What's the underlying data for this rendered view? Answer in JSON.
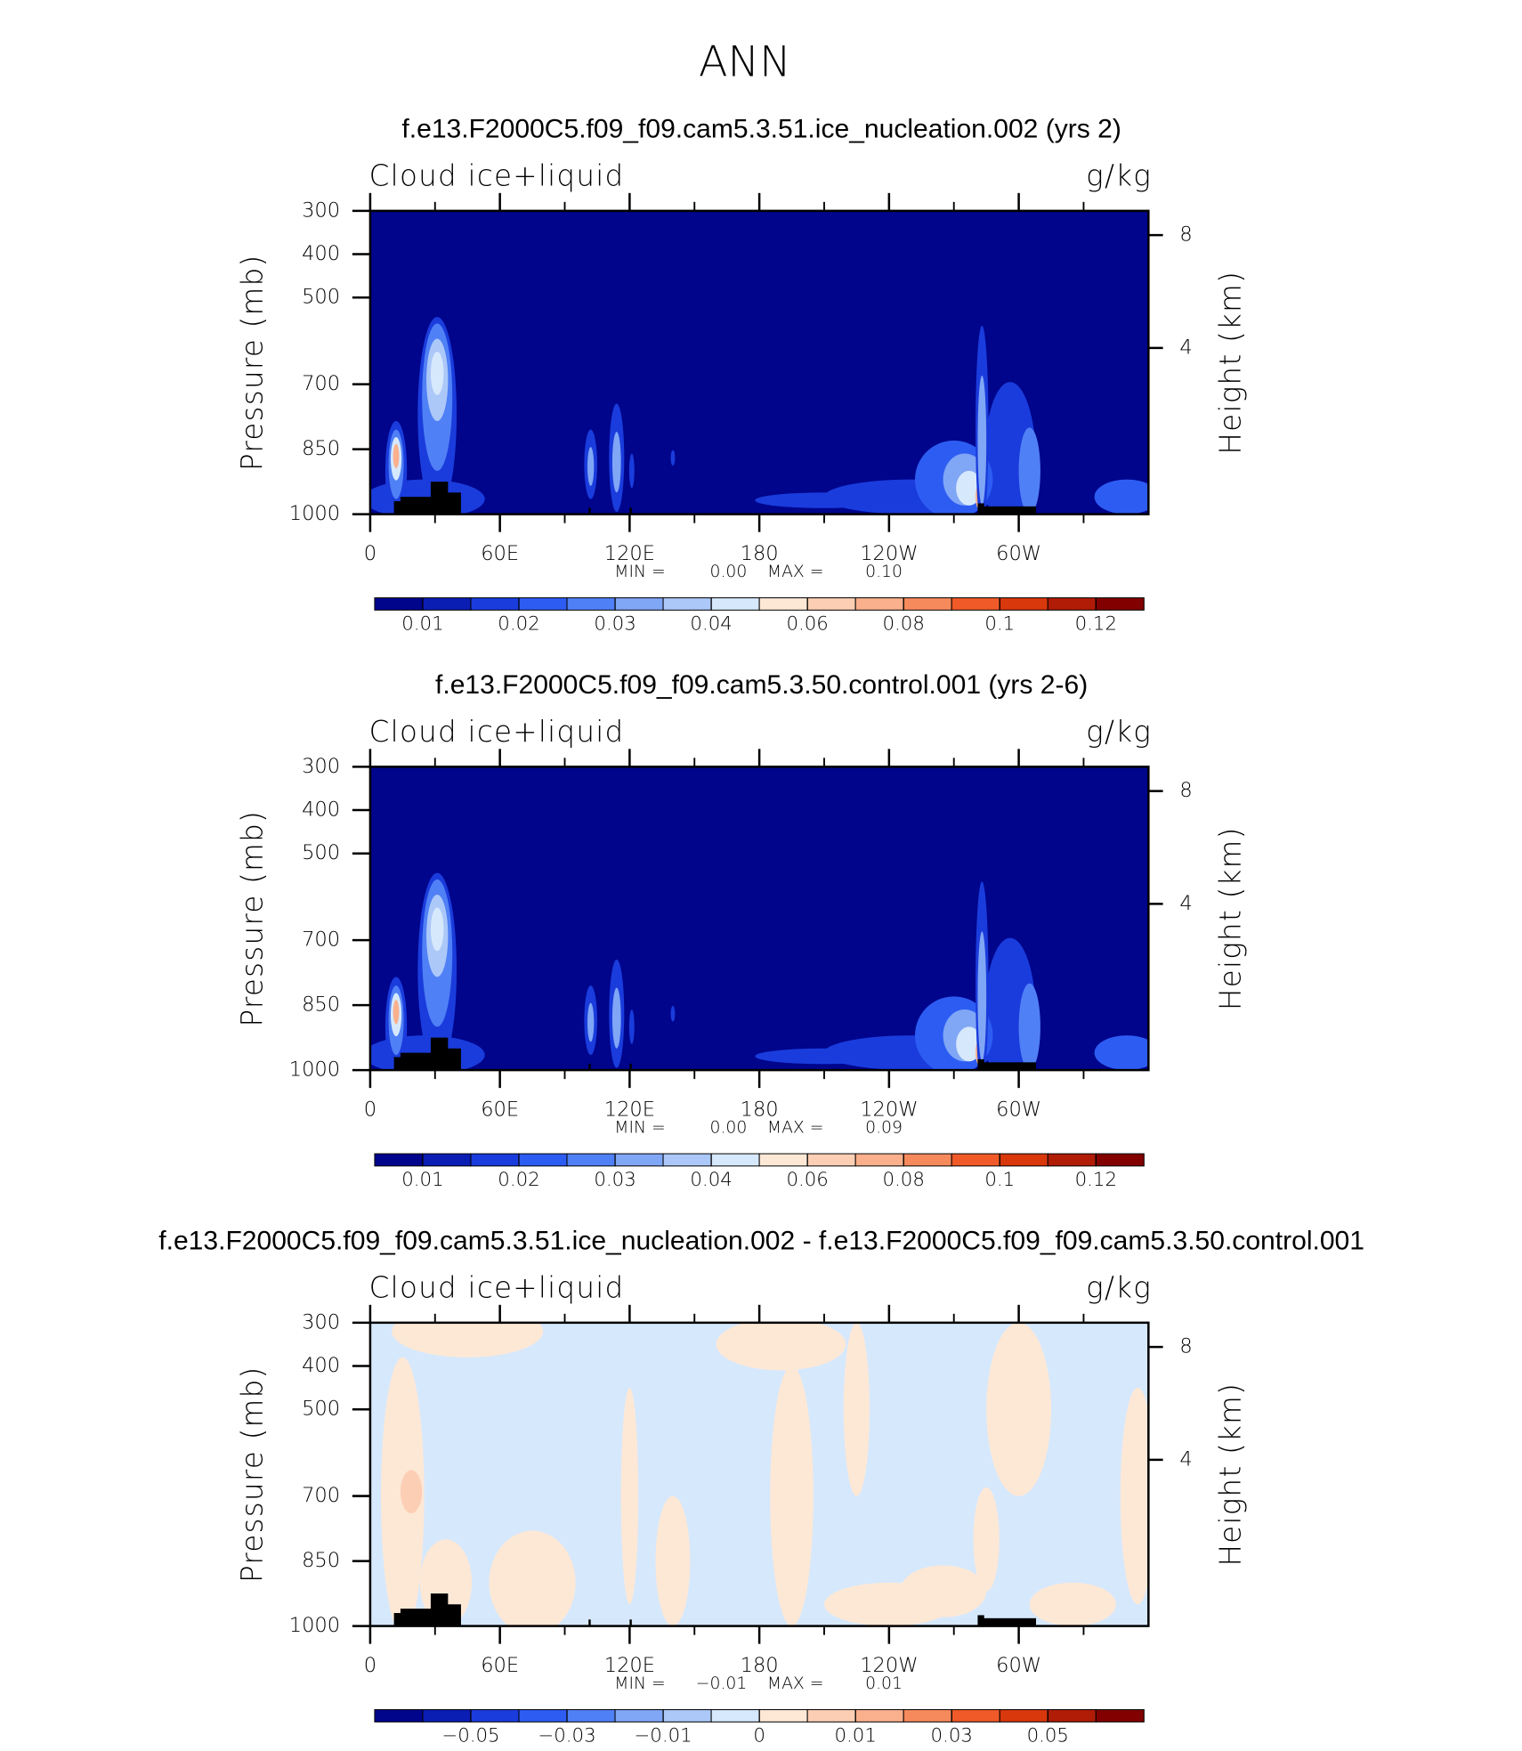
{
  "title": "ANN",
  "chart_data": [
    {
      "type": "contour",
      "title": "f.e13.F2000C5.f09_f09.cam5.3.51.ice_nucleation.002 (yrs 2)",
      "left_string": "Cloud ice+liquid",
      "right_string": "g/kg",
      "ylabel": "Pressure (mb)",
      "y2label": "Height (km)",
      "xlim": [
        0,
        360
      ],
      "xticks": [
        0,
        {
          "value": 60,
          "label": "60E"
        },
        {
          "value": 120,
          "label": "120E"
        },
        180,
        {
          "value": 240,
          "label": "120W"
        },
        {
          "value": 300,
          "label": "60W"
        }
      ],
      "xminorticks": [
        30,
        90,
        150,
        210,
        270,
        330
      ],
      "ylim": [
        1000,
        300
      ],
      "yticks": [
        300,
        400,
        500,
        700,
        850,
        1000
      ],
      "y2ticks": [
        4,
        8
      ],
      "y2scale": "standard-atmosphere",
      "min_label": "MIN =",
      "max_label": "MAX =",
      "min": {
        "value": 0,
        "label": "0.00"
      },
      "max": {
        "value": 0.1,
        "label": "0.10"
      },
      "colorbar": {
        "colors": [
          "#00058c",
          "#0a1eb4",
          "#1a3cdc",
          "#2d5cf2",
          "#5080f6",
          "#80a6f6",
          "#acc8f8",
          "#d6e8fc",
          "#fde8d6",
          "#fccfb4",
          "#fab08c",
          "#f78a5c",
          "#f05a28",
          "#d8380c",
          "#b01c06",
          "#820000"
        ],
        "levels": [
          0.01,
          null,
          0.02,
          null,
          0.03,
          null,
          0.04,
          null,
          0.06,
          null,
          0.08,
          null,
          0.1,
          null,
          0.12
        ]
      }
    },
    {
      "type": "contour",
      "title": "f.e13.F2000C5.f09_f09.cam5.3.50.control.001 (yrs 2-6)",
      "left_string": "Cloud ice+liquid",
      "right_string": "g/kg",
      "ylabel": "Pressure (mb)",
      "y2label": "Height (km)",
      "xlim": [
        0,
        360
      ],
      "xticks": [
        0,
        {
          "value": 60,
          "label": "60E"
        },
        {
          "value": 120,
          "label": "120E"
        },
        180,
        {
          "value": 240,
          "label": "120W"
        },
        {
          "value": 300,
          "label": "60W"
        }
      ],
      "xminorticks": [
        30,
        90,
        150,
        210,
        270,
        330
      ],
      "ylim": [
        1000,
        300
      ],
      "yticks": [
        300,
        400,
        500,
        700,
        850,
        1000
      ],
      "y2ticks": [
        4,
        8
      ],
      "y2scale": "standard-atmosphere",
      "min_label": "MIN =",
      "max_label": "MAX =",
      "min": {
        "value": 0,
        "label": "0.00"
      },
      "max": 0.09,
      "colorbar": {
        "colors": [
          "#00058c",
          "#0a1eb4",
          "#1a3cdc",
          "#2d5cf2",
          "#5080f6",
          "#80a6f6",
          "#acc8f8",
          "#d6e8fc",
          "#fde8d6",
          "#fccfb4",
          "#fab08c",
          "#f78a5c",
          "#f05a28",
          "#d8380c",
          "#b01c06",
          "#820000"
        ],
        "levels": [
          0.01,
          null,
          0.02,
          null,
          0.03,
          null,
          0.04,
          null,
          0.06,
          null,
          0.08,
          null,
          0.1,
          null,
          0.12
        ]
      }
    },
    {
      "type": "contour-diff",
      "title": "f.e13.F2000C5.f09_f09.cam5.3.51.ice_nucleation.002 - f.e13.F2000C5.f09_f09.cam5.3.50.control.001",
      "left_string": "Cloud ice+liquid",
      "right_string": "g/kg",
      "ylabel": "Pressure (mb)",
      "y2label": "Height (km)",
      "xlim": [
        0,
        360
      ],
      "xticks": [
        0,
        {
          "value": 60,
          "label": "60E"
        },
        {
          "value": 120,
          "label": "120E"
        },
        180,
        {
          "value": 240,
          "label": "120W"
        },
        {
          "value": 300,
          "label": "60W"
        }
      ],
      "xminorticks": [
        30,
        90,
        150,
        210,
        270,
        330
      ],
      "ylim": [
        1000,
        300
      ],
      "yticks": [
        300,
        400,
        500,
        700,
        850,
        1000
      ],
      "y2ticks": [
        4,
        8
      ],
      "y2scale": "standard-atmosphere",
      "min_label": "MIN =",
      "max_label": "MAX =",
      "min": {
        "value": -0.01,
        "label": "−0.01"
      },
      "max": 0.01,
      "colorbar": {
        "colors": [
          "#00058c",
          "#0a1eb4",
          "#1a3cdc",
          "#2d5cf2",
          "#5080f6",
          "#80a6f6",
          "#acc8f8",
          "#d6e8fc",
          "#fde8d6",
          "#fccfb4",
          "#fab08c",
          "#f78a5c",
          "#f05a28",
          "#d8380c",
          "#b01c06",
          "#820000"
        ],
        "levels": [
          null,
          {
            "value": -0.05,
            "label": "−0.05"
          },
          null,
          {
            "value": -0.03,
            "label": "−0.03"
          },
          null,
          {
            "value": -0.01,
            "label": "−0.01"
          },
          null,
          0,
          null,
          0.01,
          null,
          0.03,
          null,
          0.05,
          null
        ]
      }
    }
  ]
}
